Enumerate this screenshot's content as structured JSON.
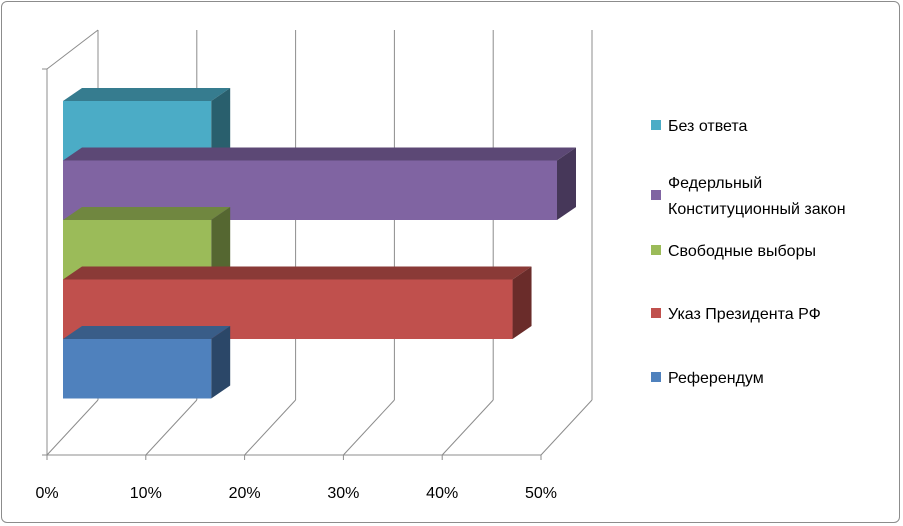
{
  "chart_data": {
    "type": "bar",
    "orientation": "horizontal",
    "style": "3d-stacked-horizontal",
    "title": "",
    "xlabel": "",
    "ylabel": "",
    "xlim": [
      0,
      50
    ],
    "x_tick_labels": [
      "0%",
      "10%",
      "20%",
      "30%",
      "40%",
      "50%"
    ],
    "grid": true,
    "legend_position": "right",
    "series": [
      {
        "name": "Референдум",
        "value": 15,
        "color": "#4F81BD",
        "legend_lines": [
          "Референдум"
        ]
      },
      {
        "name": "Указ Президента РФ",
        "value": 45.5,
        "color": "#C0504D",
        "legend_lines": [
          "Указ Президента РФ"
        ]
      },
      {
        "name": "Свободные выборы",
        "value": 15,
        "color": "#9BBB59",
        "legend_lines": [
          "Свободные выборы"
        ]
      },
      {
        "name": "Федерльный Конституционный закон",
        "value": 50,
        "color": "#8064A2",
        "legend_lines": [
          "Федерльный",
          "Конституционный закон"
        ]
      },
      {
        "name": "Без ответа",
        "value": 15,
        "color": "#4BACC6",
        "legend_lines": [
          "Без ответа"
        ]
      }
    ]
  }
}
